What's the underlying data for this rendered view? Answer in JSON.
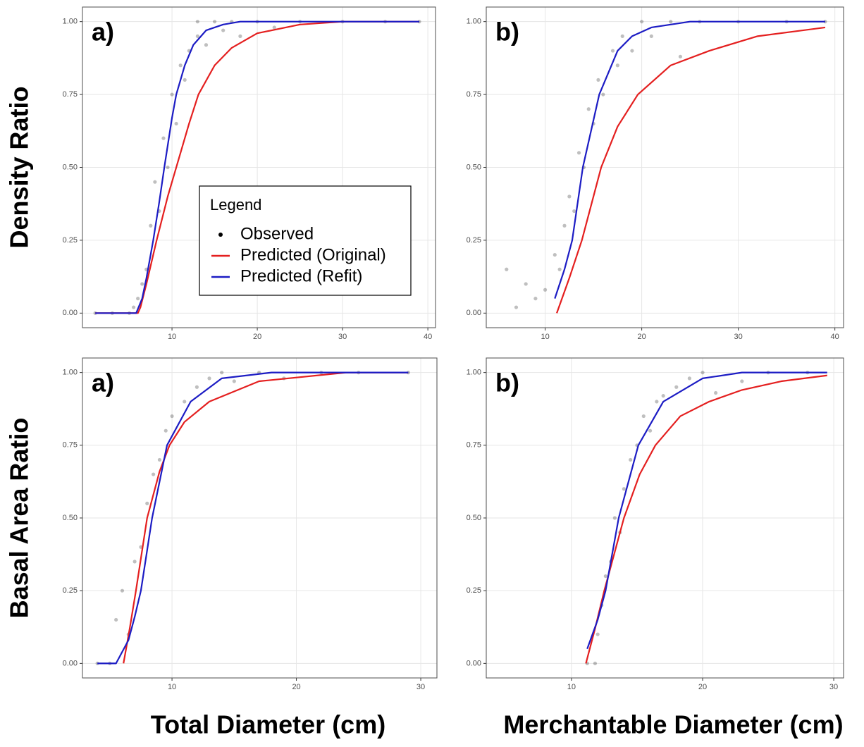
{
  "chart_data": [
    {
      "type": "scatter",
      "label": "a)",
      "ylabel": "Density Ratio",
      "legend": true,
      "legend_title": "Legend",
      "grid": true,
      "xlim": [
        -0.5,
        40.9
      ],
      "ylim": [
        -0.05,
        1.05
      ],
      "xticks": [
        10,
        20,
        30,
        40
      ],
      "yticks": [
        {
          "value": 0,
          "label": "0.00"
        },
        0.25,
        {
          "value": 0.5,
          "label": "0.50"
        },
        0.75,
        {
          "value": 1,
          "label": "1.00"
        }
      ],
      "series": [
        {
          "name": "Observed",
          "kind": "points",
          "color": "#000000",
          "opacity": 0.25,
          "x": [
            1,
            3,
            5,
            5.5,
            6,
            6.5,
            7,
            7.5,
            8,
            8.5,
            9,
            9.5,
            10,
            10.5,
            11,
            11.5,
            12,
            13,
            13,
            14,
            15,
            16,
            17,
            18,
            20,
            22,
            25,
            30,
            35,
            39
          ],
          "values": [
            0,
            0,
            0,
            0.02,
            0.05,
            0.1,
            0.15,
            0.3,
            0.45,
            0.35,
            0.6,
            0.5,
            0.75,
            0.65,
            0.85,
            0.8,
            0.9,
            0.95,
            1,
            0.92,
            1,
            0.97,
            1,
            0.95,
            1,
            0.98,
            1,
            1,
            1,
            1
          ]
        },
        {
          "name": "Predicted (Original)",
          "kind": "line",
          "color": "#e41f1f",
          "x": [
            1,
            6,
            6.3,
            7,
            8.2,
            9.5,
            10.5,
            12,
            13.1,
            15,
            17,
            20,
            25,
            30,
            39
          ],
          "values": [
            0,
            0,
            0.02,
            0.1,
            0.25,
            0.4,
            0.5,
            0.65,
            0.75,
            0.85,
            0.91,
            0.96,
            0.99,
            1,
            1
          ]
        },
        {
          "name": "Predicted (Refit)",
          "kind": "line",
          "color": "#1c1cc4",
          "x": [
            1,
            5.8,
            6.5,
            7,
            7.8,
            8.5,
            9.1,
            10,
            10.5,
            11.5,
            12.5,
            14,
            16,
            18,
            25,
            39
          ],
          "values": [
            0,
            0,
            0.05,
            0.12,
            0.25,
            0.38,
            0.5,
            0.67,
            0.75,
            0.85,
            0.92,
            0.97,
            0.99,
            1,
            1,
            1
          ]
        }
      ]
    },
    {
      "type": "scatter",
      "label": "b)",
      "grid": true,
      "xlim": [
        3.9,
        40.9
      ],
      "ylim": [
        -0.05,
        1.05
      ],
      "xticks": [
        10,
        20,
        30,
        40
      ],
      "yticks": [
        {
          "value": 0,
          "label": "0.00"
        },
        0.25,
        {
          "value": 0.5,
          "label": "0.50"
        },
        0.75,
        {
          "value": 1,
          "label": "1.00"
        }
      ],
      "series": [
        {
          "name": "Observed",
          "kind": "points",
          "color": "#000000",
          "opacity": 0.25,
          "x": [
            6,
            7,
            8,
            9,
            10,
            11,
            11.5,
            12,
            12.5,
            13,
            13.5,
            14,
            14.5,
            15,
            15.5,
            16,
            17,
            17.5,
            18,
            19,
            20,
            21,
            23,
            24,
            26,
            30,
            35,
            39
          ],
          "values": [
            0.15,
            0.02,
            0.1,
            0.05,
            0.08,
            0.2,
            0.15,
            0.3,
            0.4,
            0.35,
            0.55,
            0.5,
            0.7,
            0.65,
            0.8,
            0.75,
            0.9,
            0.85,
            0.95,
            0.9,
            1,
            0.95,
            1,
            0.88,
            1,
            1,
            1,
            1
          ]
        },
        {
          "name": "Predicted (Original)",
          "kind": "line",
          "color": "#e41f1f",
          "x": [
            11.2,
            12.5,
            13.8,
            15.8,
            17.5,
            19.6,
            23,
            27,
            32,
            39
          ],
          "values": [
            0,
            0.12,
            0.25,
            0.5,
            0.64,
            0.75,
            0.85,
            0.9,
            0.95,
            0.98
          ]
        },
        {
          "name": "Predicted (Refit)",
          "kind": "line",
          "color": "#1c1cc4",
          "x": [
            11,
            12,
            12.8,
            13.9,
            15.6,
            17.5,
            19,
            21,
            25,
            39
          ],
          "values": [
            0.05,
            0.15,
            0.25,
            0.5,
            0.75,
            0.9,
            0.95,
            0.98,
            1,
            1
          ]
        }
      ]
    },
    {
      "type": "scatter",
      "label": "a)",
      "ylabel": "Basal Area Ratio",
      "xlabel": "Total Diameter (cm)",
      "grid": true,
      "xlim": [
        2.8,
        31.3
      ],
      "ylim": [
        -0.05,
        1.05
      ],
      "xticks": [
        10,
        20,
        30
      ],
      "yticks": [
        {
          "value": 0,
          "label": "0.00"
        },
        0.25,
        {
          "value": 0.5,
          "label": "0.50"
        },
        0.75,
        {
          "value": 1,
          "label": "1.00"
        }
      ],
      "series": [
        {
          "name": "Observed",
          "kind": "points",
          "color": "#000000",
          "opacity": 0.25,
          "x": [
            4,
            5,
            5.5,
            6,
            6.5,
            7,
            7.5,
            8,
            8.5,
            9,
            9.5,
            10,
            11,
            12,
            13,
            14,
            15,
            17,
            19,
            22,
            25,
            29
          ],
          "values": [
            0,
            0,
            0.15,
            0.25,
            0.1,
            0.35,
            0.4,
            0.55,
            0.65,
            0.7,
            0.8,
            0.85,
            0.9,
            0.95,
            0.98,
            1,
            0.97,
            1,
            0.98,
            1,
            1,
            1
          ]
        },
        {
          "name": "Predicted (Original)",
          "kind": "line",
          "color": "#e41f1f",
          "x": [
            6.1,
            6.6,
            7.1,
            8,
            9,
            9.8,
            11,
            13,
            17,
            24,
            29
          ],
          "values": [
            0,
            0.12,
            0.25,
            0.5,
            0.66,
            0.75,
            0.83,
            0.9,
            0.97,
            1,
            1
          ]
        },
        {
          "name": "Predicted (Refit)",
          "kind": "line",
          "color": "#1c1cc4",
          "x": [
            4,
            5.5,
            6.5,
            7,
            7.5,
            8.4,
            9.6,
            11.5,
            14,
            18,
            29
          ],
          "values": [
            0,
            0,
            0.08,
            0.16,
            0.25,
            0.5,
            0.75,
            0.9,
            0.98,
            1,
            1
          ]
        }
      ]
    },
    {
      "type": "scatter",
      "label": "b)",
      "xlabel": "Merchantable Diameter (cm)",
      "grid": true,
      "xlim": [
        3.5,
        30.75
      ],
      "ylim": [
        -0.05,
        1.05
      ],
      "xticks": [
        10,
        20,
        30
      ],
      "yticks": [
        {
          "value": 0,
          "label": "0.00"
        },
        0.25,
        {
          "value": 0.5,
          "label": "0.50"
        },
        0.75,
        {
          "value": 1,
          "label": "1.00"
        }
      ],
      "series": [
        {
          "name": "Observed",
          "kind": "points",
          "color": "#000000",
          "opacity": 0.25,
          "x": [
            11.2,
            11.8,
            12,
            12.3,
            12.6,
            13,
            13.3,
            13.7,
            14,
            14.5,
            15,
            15.5,
            16,
            16.5,
            17,
            18,
            19,
            20,
            21,
            23,
            25,
            28
          ],
          "values": [
            0,
            0,
            0.1,
            0.2,
            0.3,
            0.35,
            0.5,
            0.45,
            0.6,
            0.7,
            0.75,
            0.85,
            0.8,
            0.9,
            0.92,
            0.95,
            0.98,
            1,
            0.93,
            0.97,
            1,
            1
          ]
        },
        {
          "name": "Predicted (Original)",
          "kind": "line",
          "color": "#e41f1f",
          "x": [
            11.1,
            11.8,
            12.5,
            14,
            15.2,
            16.4,
            18.3,
            20.5,
            23,
            26,
            29.5
          ],
          "values": [
            0,
            0.12,
            0.25,
            0.5,
            0.65,
            0.75,
            0.85,
            0.9,
            0.94,
            0.97,
            0.99
          ]
        },
        {
          "name": "Predicted (Refit)",
          "kind": "line",
          "color": "#1c1cc4",
          "x": [
            11.2,
            12,
            12.6,
            13.6,
            15.1,
            17,
            20,
            23,
            29.5
          ],
          "values": [
            0.05,
            0.15,
            0.25,
            0.5,
            0.75,
            0.9,
            0.98,
            1,
            1
          ]
        }
      ]
    }
  ]
}
